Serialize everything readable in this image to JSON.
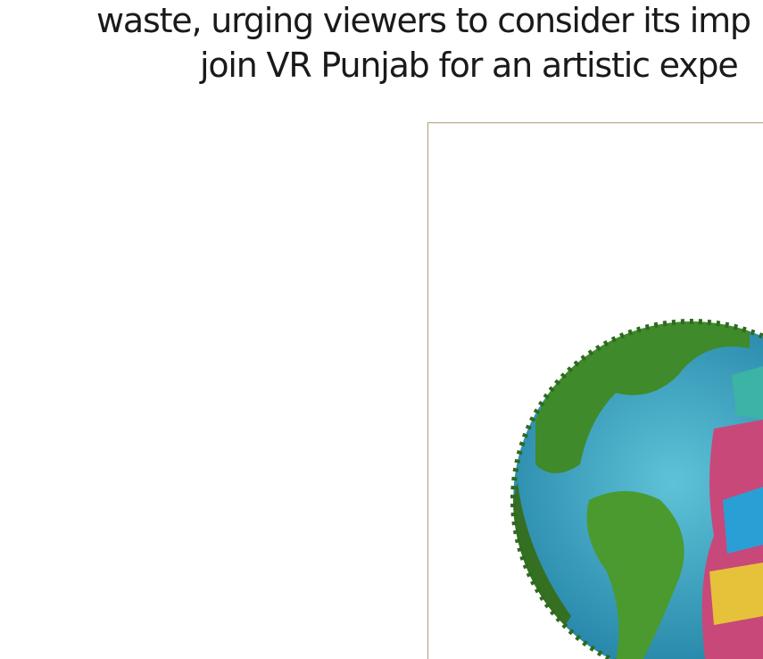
{
  "text": {
    "lines": [
      "waste, urging viewers to consider its imp",
      "join VR Punjab for an artistic expe"
    ]
  }
}
